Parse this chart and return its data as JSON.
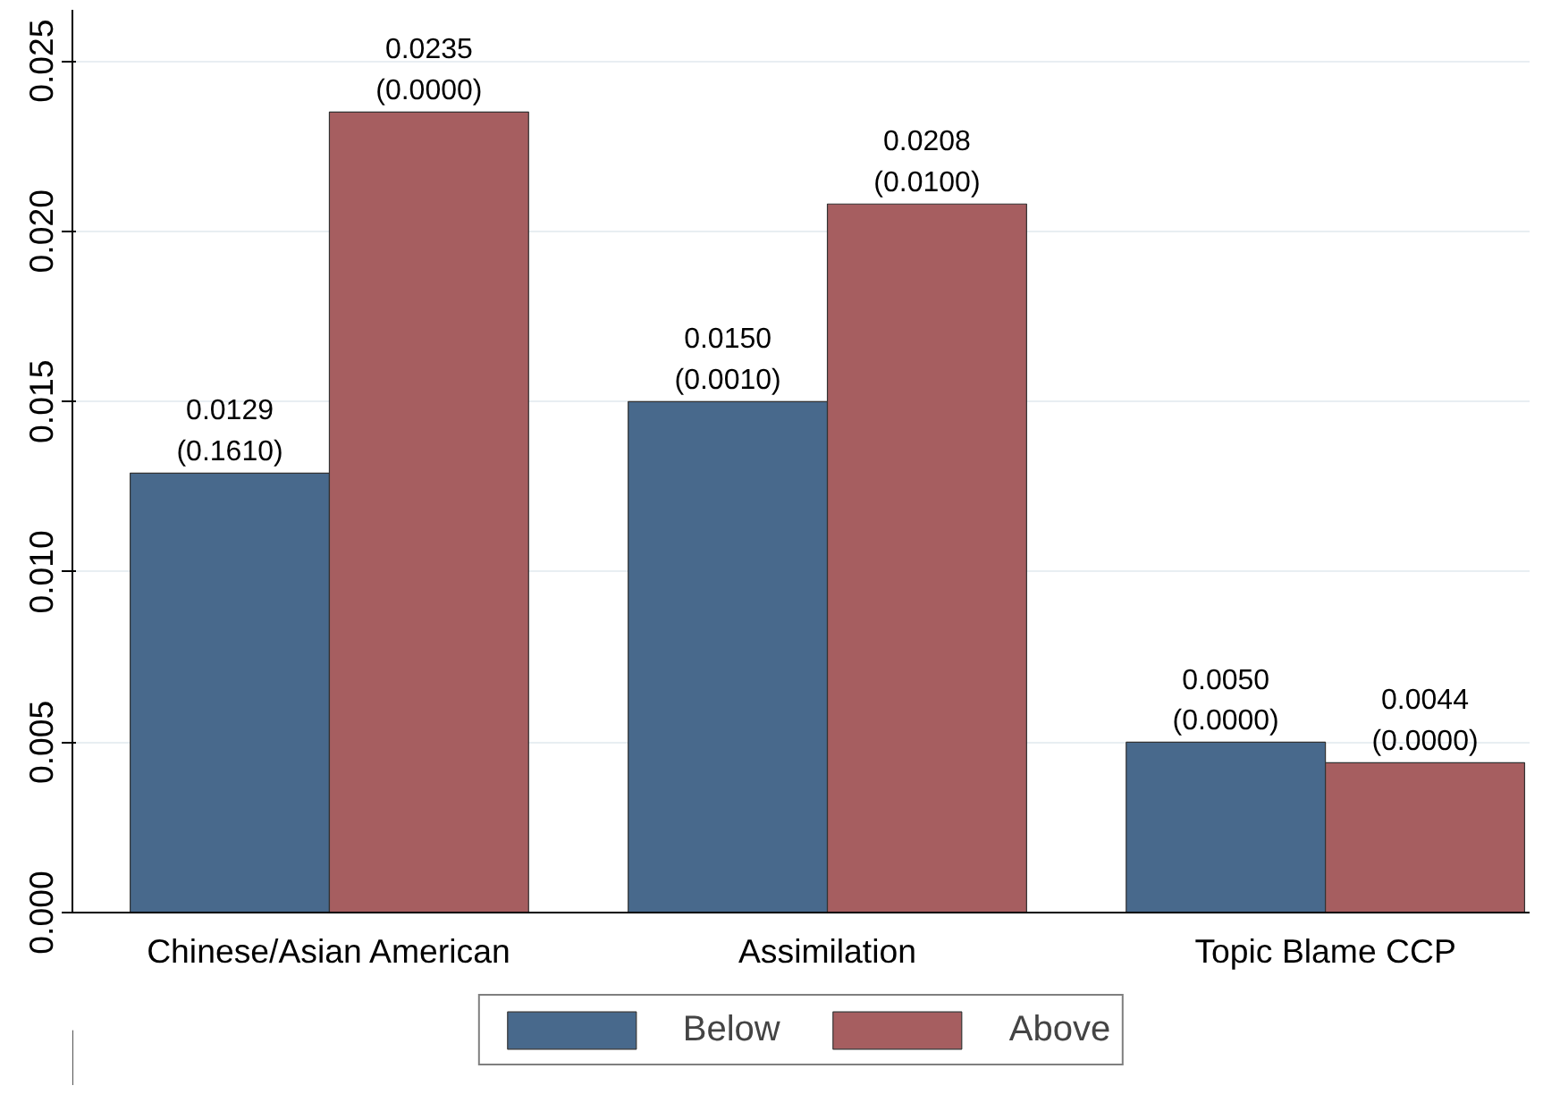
{
  "chart_data": {
    "type": "bar",
    "categories": [
      "Chinese/Asian American",
      "Assimilation",
      "Topic Blame CCP"
    ],
    "series": [
      {
        "name": "Below",
        "color": "#48698c",
        "values": [
          0.0129,
          0.015,
          0.005
        ],
        "value_labels": [
          "0.0129\n(0.1610)",
          "0.0150\n(0.0010)",
          "0.0050\n(0.0000)"
        ]
      },
      {
        "name": "Above",
        "color": "#a65e60",
        "values": [
          0.0235,
          0.0208,
          0.0044
        ],
        "value_labels": [
          "0.0235\n(0.0000)",
          "0.0208\n(0.0100)",
          "0.0044\n(0.0000)"
        ]
      }
    ],
    "ylim": [
      0,
      0.0265
    ],
    "yticks": [
      {
        "value": 0,
        "label": "0.000"
      },
      {
        "value": 0.005,
        "label": "0.005"
      },
      {
        "value": 0.01,
        "label": "0.010"
      },
      {
        "value": 0.015,
        "label": "0.015"
      },
      {
        "value": 0.02,
        "label": "0.020"
      },
      {
        "value": 0.025,
        "label": "0.025"
      }
    ],
    "grid": "y",
    "legend": "bottom"
  }
}
